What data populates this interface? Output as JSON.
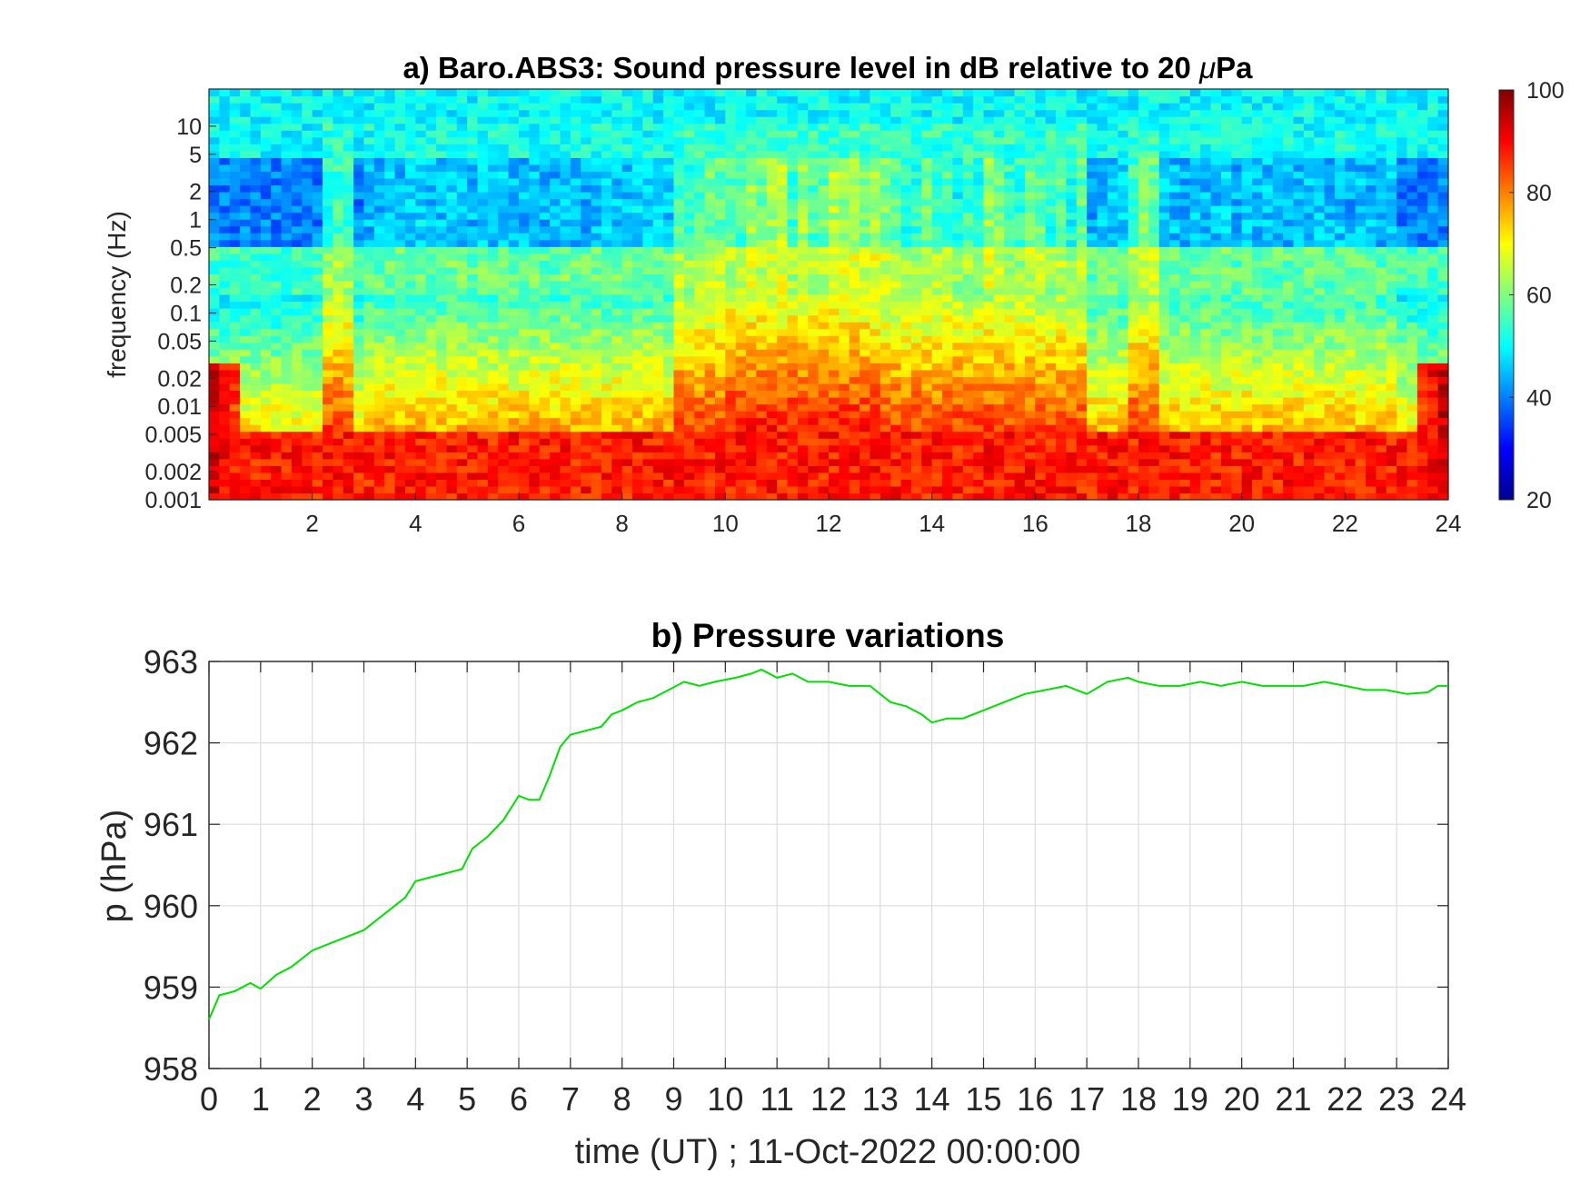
{
  "chart_data": [
    {
      "type": "heatmap",
      "title_prefix": "a) Baro.ABS3: Sound pressure level in dB relative to 20 ",
      "title_mu": "μ",
      "title_suffix": "Pa",
      "ylabel": "frequency (Hz)",
      "xlabel": "",
      "x_ticks": [
        2,
        4,
        6,
        8,
        10,
        12,
        14,
        16,
        18,
        20,
        22,
        24
      ],
      "y_ticks": [
        {
          "value": 10,
          "label": "10"
        },
        {
          "value": 5,
          "label": "5"
        },
        {
          "value": 2,
          "label": "2"
        },
        {
          "value": 1,
          "label": "1"
        },
        {
          "value": 0.5,
          "label": "0.5"
        },
        {
          "value": 0.2,
          "label": "0.2"
        },
        {
          "value": 0.1,
          "label": "0.1"
        },
        {
          "value": 0.05,
          "label": "0.05"
        },
        {
          "value": 0.02,
          "label": "0.02"
        },
        {
          "value": 0.01,
          "label": "0.01"
        },
        {
          "value": 0.005,
          "label": "0.005"
        },
        {
          "value": 0.002,
          "label": "0.002"
        },
        {
          "value": 0.001,
          "label": "0.001"
        }
      ],
      "xlim": [
        0,
        24
      ],
      "ylim": [
        0.001,
        25
      ],
      "yscale": "log",
      "colormap": "jet",
      "colorbar": {
        "min": 20,
        "max": 100,
        "ticks": [
          20,
          40,
          60,
          80,
          100
        ]
      },
      "description_rows_db_by_hour_band": {
        "high_5_to_25Hz": 50,
        "band_0.5_to_5Hz": 40,
        "band_0.15_to_0.5Hz": 55,
        "low_below_0.005Hz": 88
      },
      "active_periods_hours": [
        [
          2.3,
          2.7
        ],
        [
          9.0,
          17.0
        ],
        [
          17.8,
          18.3
        ]
      ]
    },
    {
      "type": "line",
      "title": "b) Pressure variations",
      "xlabel": "time (UT) ; 11-Oct-2022 00:00:00",
      "ylabel": "p (hPa)",
      "xlim": [
        0,
        24
      ],
      "ylim": [
        958,
        963
      ],
      "x_ticks": [
        0,
        1,
        2,
        3,
        4,
        5,
        6,
        7,
        8,
        9,
        10,
        11,
        12,
        13,
        14,
        15,
        16,
        17,
        18,
        19,
        20,
        21,
        22,
        23,
        24
      ],
      "y_ticks": [
        958,
        959,
        960,
        961,
        962,
        963
      ],
      "grid": true,
      "line_color": "#00e000",
      "series": [
        {
          "x": [
            0,
            0.2,
            0.5,
            0.8,
            1.0,
            1.3,
            1.6,
            2.0,
            2.4,
            2.8,
            3.0,
            3.4,
            3.8,
            4.0,
            4.3,
            4.6,
            4.9,
            5.1,
            5.4,
            5.7,
            6.0,
            6.2,
            6.4,
            6.6,
            6.8,
            7.0,
            7.3,
            7.6,
            7.8,
            8.0,
            8.3,
            8.6,
            8.9,
            9.2,
            9.5,
            9.8,
            10.2,
            10.5,
            10.7,
            11.0,
            11.3,
            11.6,
            12.0,
            12.4,
            12.8,
            13.2,
            13.5,
            13.8,
            14.0,
            14.3,
            14.6,
            15.0,
            15.4,
            15.8,
            16.2,
            16.6,
            17.0,
            17.4,
            17.8,
            18.0,
            18.4,
            18.8,
            19.2,
            19.6,
            20.0,
            20.4,
            20.8,
            21.2,
            21.6,
            22.0,
            22.4,
            22.8,
            23.2,
            23.6,
            23.8,
            24.0
          ],
          "y": [
            958.6,
            958.9,
            958.95,
            959.05,
            958.98,
            959.15,
            959.25,
            959.45,
            959.55,
            959.65,
            959.7,
            959.9,
            960.1,
            960.3,
            960.35,
            960.4,
            960.45,
            960.7,
            960.85,
            961.05,
            961.35,
            961.3,
            961.3,
            961.6,
            961.95,
            962.1,
            962.15,
            962.2,
            962.35,
            962.4,
            962.5,
            962.55,
            962.65,
            962.75,
            962.7,
            962.75,
            962.8,
            962.85,
            962.9,
            962.8,
            962.85,
            962.75,
            962.75,
            962.7,
            962.7,
            962.5,
            962.45,
            962.35,
            962.25,
            962.3,
            962.3,
            962.4,
            962.5,
            962.6,
            962.65,
            962.7,
            962.6,
            962.75,
            962.8,
            962.75,
            962.7,
            962.7,
            962.75,
            962.7,
            962.75,
            962.7,
            962.7,
            962.7,
            962.75,
            962.7,
            962.65,
            962.65,
            962.6,
            962.62,
            962.7,
            962.7
          ]
        }
      ]
    }
  ]
}
